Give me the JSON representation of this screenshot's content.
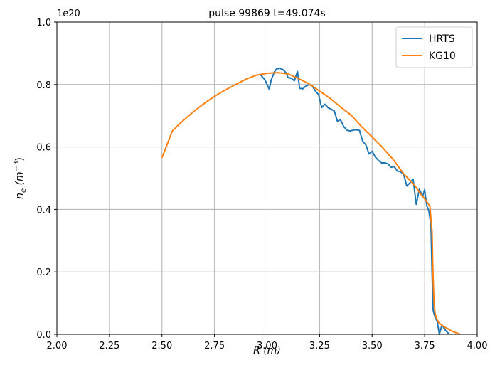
{
  "chart_data": {
    "type": "line",
    "title": "pulse 99869 t=49.074s",
    "xlabel": "R",
    "xlabel_unit": "(m)",
    "ylabel_var": "n",
    "ylabel_sub": "e",
    "ylabel_unit_open": "(m",
    "ylabel_unit_exp": "−3",
    "ylabel_unit_close": ")",
    "y_offset_label": "1e20",
    "xlim": [
      2.0,
      4.0
    ],
    "ylim": [
      0.0,
      1.0
    ],
    "xticks": [
      "2.00",
      "2.25",
      "2.50",
      "2.75",
      "3.00",
      "3.25",
      "3.50",
      "3.75",
      "4.00"
    ],
    "yticks": [
      "0.0",
      "0.2",
      "0.4",
      "0.6",
      "0.8",
      "1.0"
    ],
    "grid": true,
    "legend_position": "top-right",
    "series": [
      {
        "name": "HRTS",
        "color": "#1f77b4",
        "x": [
          2.97,
          2.99,
          3.01,
          3.02,
          3.035,
          3.045,
          3.06,
          3.075,
          3.09,
          3.1,
          3.115,
          3.13,
          3.145,
          3.155,
          3.17,
          3.185,
          3.2,
          3.215,
          3.23,
          3.245,
          3.26,
          3.275,
          3.29,
          3.305,
          3.32,
          3.335,
          3.35,
          3.365,
          3.38,
          3.395,
          3.41,
          3.425,
          3.44,
          3.455,
          3.47,
          3.485,
          3.5,
          3.515,
          3.53,
          3.545,
          3.56,
          3.575,
          3.59,
          3.605,
          3.62,
          3.635,
          3.65,
          3.665,
          3.68,
          3.695,
          3.71,
          3.725,
          3.74,
          3.75,
          3.76,
          3.77,
          3.78,
          3.785,
          3.79,
          3.795,
          3.8,
          3.81,
          3.82,
          3.83,
          3.835,
          3.84,
          3.85,
          3.86,
          3.87
        ],
        "values": [
          0.83,
          0.815,
          0.785,
          0.815,
          0.84,
          0.85,
          0.852,
          0.848,
          0.838,
          0.822,
          0.82,
          0.812,
          0.842,
          0.788,
          0.786,
          0.795,
          0.8,
          0.796,
          0.779,
          0.768,
          0.726,
          0.737,
          0.726,
          0.721,
          0.715,
          0.682,
          0.687,
          0.665,
          0.654,
          0.651,
          0.654,
          0.655,
          0.653,
          0.618,
          0.607,
          0.578,
          0.586,
          0.568,
          0.557,
          0.549,
          0.549,
          0.546,
          0.535,
          0.537,
          0.523,
          0.521,
          0.512,
          0.475,
          0.485,
          0.497,
          0.416,
          0.465,
          0.441,
          0.463,
          0.412,
          0.396,
          0.35,
          0.2,
          0.08,
          0.065,
          0.055,
          0.04,
          0.0,
          0.025,
          0.028,
          0.022,
          0.012,
          0.005,
          0.0
        ]
      },
      {
        "name": "KG10",
        "color": "#ff7f0e",
        "x": [
          2.5,
          2.55,
          2.6,
          2.65,
          2.7,
          2.75,
          2.8,
          2.85,
          2.9,
          2.95,
          3.0,
          3.05,
          3.1,
          3.15,
          3.2,
          3.25,
          3.3,
          3.35,
          3.4,
          3.45,
          3.5,
          3.55,
          3.6,
          3.65,
          3.7,
          3.73,
          3.76,
          3.775,
          3.785,
          3.79,
          3.795,
          3.8,
          3.81,
          3.82,
          3.84,
          3.86,
          3.88,
          3.9,
          3.92
        ],
        "values": [
          0.566,
          0.652,
          0.684,
          0.713,
          0.739,
          0.762,
          0.782,
          0.8,
          0.817,
          0.83,
          0.836,
          0.838,
          0.834,
          0.819,
          0.802,
          0.779,
          0.756,
          0.728,
          0.702,
          0.665,
          0.632,
          0.598,
          0.56,
          0.514,
          0.479,
          0.45,
          0.425,
          0.41,
          0.33,
          0.19,
          0.1,
          0.065,
          0.045,
          0.035,
          0.025,
          0.018,
          0.01,
          0.005,
          0.0
        ]
      }
    ]
  }
}
